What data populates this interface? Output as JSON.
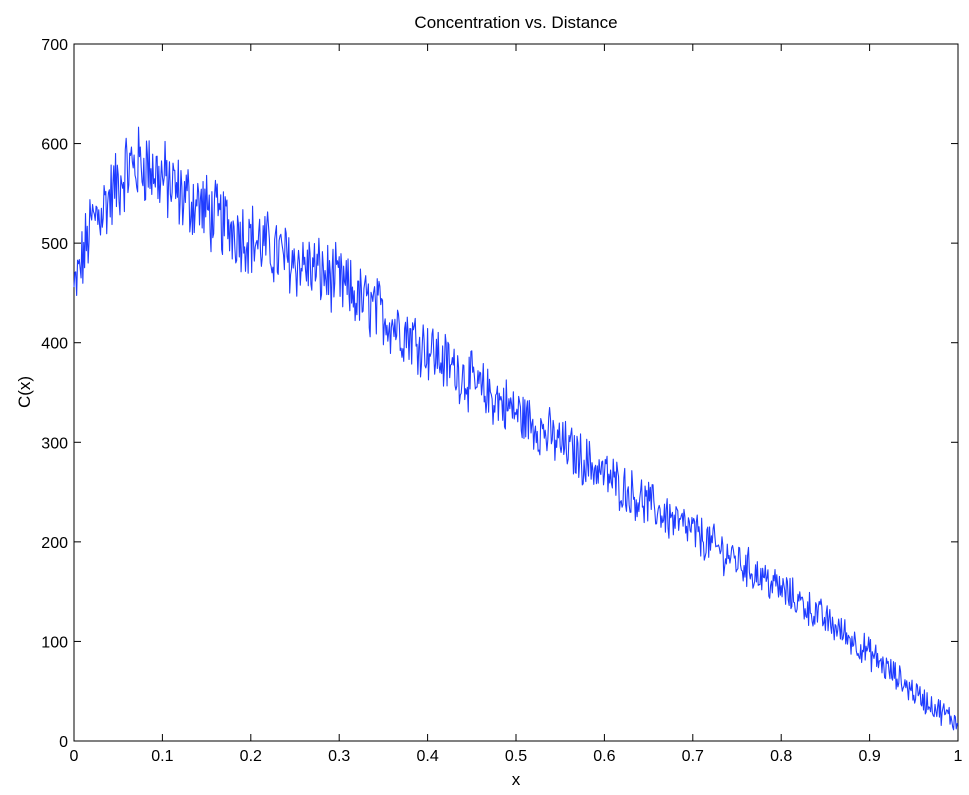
{
  "chart_data": {
    "type": "line",
    "title": "Concentration vs. Distance",
    "xlabel": "x",
    "ylabel": "C(x)",
    "xlim": [
      0,
      1
    ],
    "ylim": [
      0,
      700
    ],
    "xticks": [
      "0",
      "0.1",
      "0.2",
      "0.3",
      "0.4",
      "0.5",
      "0.6",
      "0.7",
      "0.8",
      "0.9",
      "1"
    ],
    "yticks": [
      "0",
      "100",
      "200",
      "300",
      "400",
      "500",
      "600",
      "700"
    ],
    "grid": false,
    "line_color": "#1f3cff",
    "series": [
      {
        "x": [
          0,
          0.02,
          0.04,
          0.06,
          0.08,
          0.1,
          0.12,
          0.14,
          0.16,
          0.18,
          0.2,
          0.22,
          0.24,
          0.26,
          0.28,
          0.3,
          0.32,
          0.34,
          0.36,
          0.38,
          0.4,
          0.42,
          0.44,
          0.46,
          0.48,
          0.5,
          0.52,
          0.54,
          0.56,
          0.58,
          0.6,
          0.62,
          0.64,
          0.66,
          0.68,
          0.7,
          0.72,
          0.74,
          0.76,
          0.78,
          0.8,
          0.82,
          0.84,
          0.86,
          0.88,
          0.9,
          0.92,
          0.94,
          0.96,
          0.98,
          1.0
        ],
        "values": [
          450,
          520,
          545,
          575,
          580,
          565,
          548,
          540,
          525,
          515,
          505,
          495,
          485,
          478,
          470,
          460,
          445,
          435,
          420,
          408,
          395,
          380,
          368,
          352,
          342,
          330,
          318,
          305,
          293,
          280,
          268,
          255,
          243,
          232,
          220,
          210,
          198,
          187,
          175,
          164,
          152,
          140,
          128,
          115,
          102,
          88,
          72,
          57,
          42,
          30,
          18
        ]
      }
    ]
  }
}
